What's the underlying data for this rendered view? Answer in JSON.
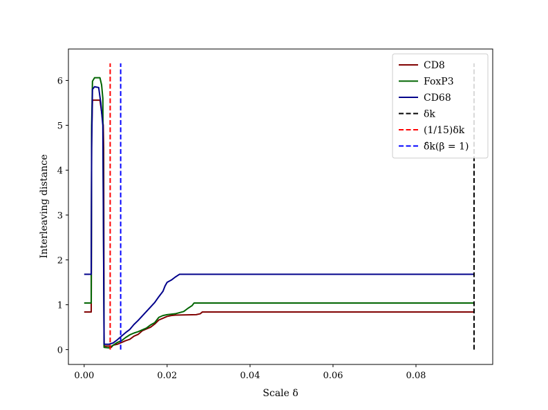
{
  "chart_data": {
    "type": "line",
    "title": "",
    "xlabel": "Scale δ",
    "ylabel": "Interleaving distance",
    "xlim": [
      -0.0038,
      0.0985
    ],
    "ylim": [
      -0.33,
      6.7
    ],
    "xticks": [
      0.0,
      0.02,
      0.04,
      0.06,
      0.08
    ],
    "xtick_labels": [
      "0.00",
      "0.02",
      "0.04",
      "0.06",
      "0.08"
    ],
    "yticks": [
      0,
      1,
      2,
      3,
      4,
      5,
      6
    ],
    "ytick_labels": [
      "0",
      "1",
      "2",
      "3",
      "4",
      "5",
      "6"
    ],
    "grid": false,
    "legend_position": "top-right",
    "series": [
      {
        "name": "CD8",
        "color": "#800000",
        "style": "solid",
        "points": [
          [
            0.0,
            0.84
          ],
          [
            0.0017,
            0.84
          ],
          [
            0.0018,
            4.8
          ],
          [
            0.002,
            5.56
          ],
          [
            0.0038,
            5.56
          ],
          [
            0.0042,
            5.3
          ],
          [
            0.0046,
            5.0
          ],
          [
            0.0047,
            4.5
          ],
          [
            0.0048,
            0.08
          ],
          [
            0.006,
            0.08
          ],
          [
            0.0065,
            0.05
          ],
          [
            0.007,
            0.1
          ],
          [
            0.008,
            0.12
          ],
          [
            0.009,
            0.16
          ],
          [
            0.01,
            0.2
          ],
          [
            0.011,
            0.23
          ],
          [
            0.012,
            0.3
          ],
          [
            0.013,
            0.34
          ],
          [
            0.014,
            0.42
          ],
          [
            0.015,
            0.46
          ],
          [
            0.016,
            0.5
          ],
          [
            0.017,
            0.57
          ],
          [
            0.018,
            0.66
          ],
          [
            0.019,
            0.7
          ],
          [
            0.02,
            0.74
          ],
          [
            0.021,
            0.76
          ],
          [
            0.022,
            0.77
          ],
          [
            0.027,
            0.78
          ],
          [
            0.028,
            0.8
          ],
          [
            0.0285,
            0.84
          ],
          [
            0.094,
            0.84
          ]
        ]
      },
      {
        "name": "FoxP3",
        "color": "#006400",
        "style": "solid",
        "points": [
          [
            0.0,
            1.04
          ],
          [
            0.0017,
            1.04
          ],
          [
            0.0018,
            5.0
          ],
          [
            0.002,
            5.98
          ],
          [
            0.0025,
            6.06
          ],
          [
            0.0038,
            6.06
          ],
          [
            0.0042,
            5.9
          ],
          [
            0.0045,
            5.6
          ],
          [
            0.0048,
            0.05
          ],
          [
            0.006,
            0.04
          ],
          [
            0.007,
            0.1
          ],
          [
            0.008,
            0.16
          ],
          [
            0.009,
            0.2
          ],
          [
            0.01,
            0.27
          ],
          [
            0.011,
            0.33
          ],
          [
            0.012,
            0.37
          ],
          [
            0.013,
            0.4
          ],
          [
            0.014,
            0.44
          ],
          [
            0.015,
            0.48
          ],
          [
            0.016,
            0.55
          ],
          [
            0.017,
            0.6
          ],
          [
            0.018,
            0.72
          ],
          [
            0.019,
            0.76
          ],
          [
            0.02,
            0.78
          ],
          [
            0.022,
            0.8
          ],
          [
            0.024,
            0.85
          ],
          [
            0.025,
            0.92
          ],
          [
            0.026,
            0.98
          ],
          [
            0.0265,
            1.04
          ],
          [
            0.094,
            1.04
          ]
        ]
      },
      {
        "name": "CD68",
        "color": "#00008B",
        "style": "solid",
        "points": [
          [
            0.0,
            1.68
          ],
          [
            0.0017,
            1.68
          ],
          [
            0.0018,
            4.5
          ],
          [
            0.002,
            5.8
          ],
          [
            0.0025,
            5.86
          ],
          [
            0.0035,
            5.84
          ],
          [
            0.004,
            5.5
          ],
          [
            0.0045,
            5.0
          ],
          [
            0.0048,
            0.12
          ],
          [
            0.006,
            0.12
          ],
          [
            0.007,
            0.15
          ],
          [
            0.008,
            0.22
          ],
          [
            0.009,
            0.3
          ],
          [
            0.01,
            0.38
          ],
          [
            0.011,
            0.45
          ],
          [
            0.012,
            0.56
          ],
          [
            0.013,
            0.65
          ],
          [
            0.014,
            0.75
          ],
          [
            0.015,
            0.85
          ],
          [
            0.016,
            0.95
          ],
          [
            0.017,
            1.05
          ],
          [
            0.018,
            1.18
          ],
          [
            0.019,
            1.3
          ],
          [
            0.0195,
            1.42
          ],
          [
            0.02,
            1.5
          ],
          [
            0.021,
            1.55
          ],
          [
            0.022,
            1.62
          ],
          [
            0.023,
            1.68
          ],
          [
            0.094,
            1.68
          ]
        ]
      },
      {
        "name": "δk",
        "color": "#000000",
        "style": "dashed",
        "points": [
          [
            0.094,
            0.0
          ],
          [
            0.094,
            6.38
          ]
        ]
      },
      {
        "name": "(1/15)δk",
        "color": "#ff0000",
        "style": "dashed",
        "points": [
          [
            0.00627,
            0.0
          ],
          [
            0.00627,
            6.38
          ]
        ]
      },
      {
        "name": "δ̂k(β = 1)",
        "color": "#0000ff",
        "style": "dashed",
        "points": [
          [
            0.0088,
            0.0
          ],
          [
            0.0088,
            6.38
          ]
        ]
      }
    ]
  }
}
